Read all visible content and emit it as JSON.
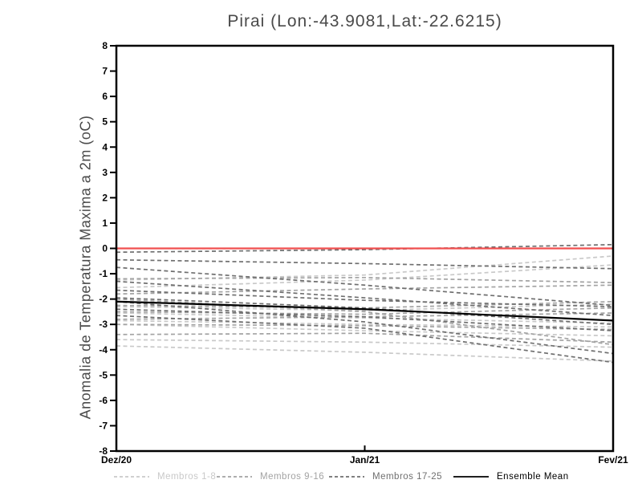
{
  "chart_data": {
    "type": "line",
    "title": "Pirai (Lon:-43.9081,Lat:-22.6215)",
    "ylabel": "Anomalia de Temperatura Maxima a 2m (oC)",
    "x_categories": [
      "Dez/20",
      "Jan/21",
      "Fev/21"
    ],
    "ylim": [
      -8,
      8
    ],
    "yticks": [
      8,
      7,
      6,
      5,
      4,
      3,
      2,
      1,
      0,
      -1,
      -2,
      -3,
      -4,
      -5,
      -6,
      -7,
      -8
    ],
    "grid": false,
    "legend_position": "bottom",
    "zero_line": {
      "value": 0,
      "color": "#f14f4f"
    },
    "groups": [
      {
        "label": "Membros 1-8",
        "color": "#c9c9c9",
        "line_style": "dashed"
      },
      {
        "label": "Membros 9-16",
        "color": "#a3a3a3",
        "line_style": "dashed"
      },
      {
        "label": "Membros 17-25",
        "color": "#6f6f6f",
        "line_style": "dashed"
      }
    ],
    "ensemble_mean": {
      "label": "Ensemble Mean",
      "color": "#000000",
      "line_style": "solid",
      "values": [
        -2.1,
        -2.4,
        -2.85
      ]
    },
    "series": [
      {
        "name": "m01",
        "group": 0,
        "values": [
          -1.25,
          -1.05,
          -0.3
        ]
      },
      {
        "name": "m02",
        "group": 0,
        "values": [
          -1.55,
          -1.25,
          -0.65
        ]
      },
      {
        "name": "m03",
        "group": 0,
        "values": [
          -2.3,
          -2.45,
          -2.2
        ]
      },
      {
        "name": "m04",
        "group": 0,
        "values": [
          -2.55,
          -2.75,
          -2.95
        ]
      },
      {
        "name": "m05",
        "group": 0,
        "values": [
          -2.85,
          -3.0,
          -3.1
        ]
      },
      {
        "name": "m06",
        "group": 0,
        "values": [
          -3.0,
          -3.25,
          -3.45
        ]
      },
      {
        "name": "m07",
        "group": 0,
        "values": [
          -3.6,
          -3.7,
          -3.9
        ]
      },
      {
        "name": "m08",
        "group": 0,
        "values": [
          -3.85,
          -4.1,
          -4.45
        ]
      },
      {
        "name": "m09",
        "group": 1,
        "values": [
          -1.2,
          -1.15,
          -1.35
        ]
      },
      {
        "name": "m10",
        "group": 1,
        "values": [
          -1.8,
          -1.6,
          -1.45
        ]
      },
      {
        "name": "m11",
        "group": 1,
        "values": [
          -2.25,
          -2.35,
          -2.1
        ]
      },
      {
        "name": "m12",
        "group": 1,
        "values": [
          -2.5,
          -2.6,
          -2.35
        ]
      },
      {
        "name": "m13",
        "group": 1,
        "values": [
          -2.8,
          -2.7,
          -2.55
        ]
      },
      {
        "name": "m14",
        "group": 1,
        "values": [
          -3.0,
          -3.05,
          -3.2
        ]
      },
      {
        "name": "m15",
        "group": 1,
        "values": [
          -3.4,
          -3.35,
          -3.7
        ]
      },
      {
        "name": "m16",
        "group": 1,
        "values": [
          -2.0,
          -2.5,
          -3.8
        ]
      },
      {
        "name": "m17",
        "group": 2,
        "values": [
          -0.15,
          -0.05,
          0.15
        ]
      },
      {
        "name": "m18",
        "group": 2,
        "values": [
          -0.45,
          -0.6,
          -0.8
        ]
      },
      {
        "name": "m19",
        "group": 2,
        "values": [
          -0.75,
          -1.45,
          -2.25
        ]
      },
      {
        "name": "m20",
        "group": 2,
        "values": [
          -1.3,
          -1.95,
          -2.65
        ]
      },
      {
        "name": "m21",
        "group": 2,
        "values": [
          -1.65,
          -2.05,
          -2.3
        ]
      },
      {
        "name": "m22",
        "group": 2,
        "values": [
          -1.95,
          -2.35,
          -3.0
        ]
      },
      {
        "name": "m23",
        "group": 2,
        "values": [
          -2.4,
          -2.7,
          -3.25
        ]
      },
      {
        "name": "m24",
        "group": 2,
        "values": [
          -2.1,
          -2.9,
          -4.15
        ]
      },
      {
        "name": "m25",
        "group": 2,
        "values": [
          -2.65,
          -3.15,
          -4.5
        ]
      }
    ]
  }
}
